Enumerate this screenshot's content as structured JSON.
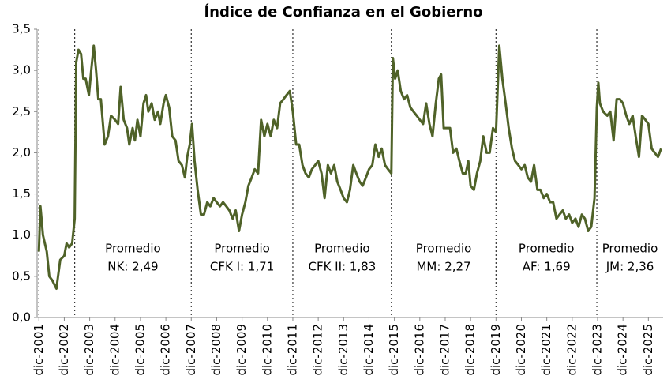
{
  "chart_data": {
    "type": "line",
    "title": "Índice de Confianza en el Gobierno",
    "color": "#4f6228",
    "grid": false,
    "xlim": [
      2001.85,
      2026.5
    ],
    "ylim": [
      0,
      3.5
    ],
    "yticks": [
      {
        "value": 0,
        "label": "0,0"
      },
      {
        "value": 0.5,
        "label": "0,5"
      },
      {
        "value": 1,
        "label": "1,0"
      },
      {
        "value": 1.5,
        "label": "1,5"
      },
      {
        "value": 2,
        "label": "2,0"
      },
      {
        "value": 2.5,
        "label": "2,5"
      },
      {
        "value": 3,
        "label": "3,0"
      },
      {
        "value": 3.5,
        "label": "3,5"
      }
    ],
    "xticks": [
      {
        "value": 2001.92,
        "label": "dic-2001"
      },
      {
        "value": 2002.92,
        "label": "dic-2002"
      },
      {
        "value": 2003.92,
        "label": "dic-2003"
      },
      {
        "value": 2004.92,
        "label": "dic-2004"
      },
      {
        "value": 2005.92,
        "label": "dic-2005"
      },
      {
        "value": 2006.92,
        "label": "dic-2006"
      },
      {
        "value": 2007.92,
        "label": "dic-2007"
      },
      {
        "value": 2008.92,
        "label": "dic-2008"
      },
      {
        "value": 2009.92,
        "label": "dic-2009"
      },
      {
        "value": 2010.92,
        "label": "dic-2010"
      },
      {
        "value": 2011.92,
        "label": "dic-2011"
      },
      {
        "value": 2012.92,
        "label": "dic-2012"
      },
      {
        "value": 2013.92,
        "label": "dic-2013"
      },
      {
        "value": 2014.92,
        "label": "dic-2014"
      },
      {
        "value": 2015.92,
        "label": "dic-2015"
      },
      {
        "value": 2016.92,
        "label": "dic-2016"
      },
      {
        "value": 2017.92,
        "label": "dic-2017"
      },
      {
        "value": 2018.92,
        "label": "dic-2018"
      },
      {
        "value": 2019.92,
        "label": "dic-2019"
      },
      {
        "value": 2020.92,
        "label": "dic-2020"
      },
      {
        "value": 2021.92,
        "label": "dic-2021"
      },
      {
        "value": 2022.92,
        "label": "dic-2022"
      },
      {
        "value": 2023.92,
        "label": "dic-2023"
      },
      {
        "value": 2024.92,
        "label": "dic-2024"
      },
      {
        "value": 2025.92,
        "label": "dic-2025"
      }
    ],
    "dividers": [
      2001.92,
      2003.33,
      2007.92,
      2011.92,
      2015.8,
      2019.92,
      2023.89
    ],
    "annotations": [
      {
        "text": "Promedio",
        "sub": "NK: 2,49"
      },
      {
        "text": "Promedio",
        "sub": "CFK I: 1,71"
      },
      {
        "text": "Promedio",
        "sub": "CFK II: 1,83"
      },
      {
        "text": "Promedio",
        "sub": "MM: 2,27"
      },
      {
        "text": "Promedio",
        "sub": "AF: 1,69"
      },
      {
        "text": "Promedio",
        "sub": "JM: 2,36"
      }
    ],
    "x": [
      2001.92,
      2001.98,
      2002.08,
      2002.23,
      2002.33,
      2002.45,
      2002.61,
      2002.76,
      2002.92,
      2003.01,
      2003.11,
      2003.23,
      2003.33,
      2003.39,
      2003.48,
      2003.58,
      2003.67,
      2003.76,
      2003.89,
      2003.98,
      2004.08,
      2004.17,
      2004.26,
      2004.36,
      2004.51,
      2004.64,
      2004.76,
      2004.92,
      2005.04,
      2005.14,
      2005.26,
      2005.39,
      2005.48,
      2005.61,
      2005.7,
      2005.8,
      2005.92,
      2006.04,
      2006.14,
      2006.23,
      2006.36,
      2006.48,
      2006.61,
      2006.7,
      2006.83,
      2006.92,
      2007.05,
      2007.17,
      2007.3,
      2007.42,
      2007.55,
      2007.67,
      2007.76,
      2007.86,
      2007.95,
      2008.05,
      2008.17,
      2008.3,
      2008.42,
      2008.55,
      2008.67,
      2008.8,
      2008.92,
      2009.05,
      2009.17,
      2009.3,
      2009.42,
      2009.55,
      2009.67,
      2009.8,
      2009.92,
      2010.05,
      2010.17,
      2010.3,
      2010.42,
      2010.55,
      2010.67,
      2010.8,
      2010.92,
      2011.05,
      2011.17,
      2011.3,
      2011.42,
      2011.55,
      2011.67,
      2011.8,
      2011.92,
      2012.05,
      2012.17,
      2012.3,
      2012.42,
      2012.55,
      2012.67,
      2012.8,
      2012.92,
      2013.05,
      2013.17,
      2013.3,
      2013.42,
      2013.55,
      2013.67,
      2013.8,
      2013.92,
      2014.05,
      2014.17,
      2014.3,
      2014.42,
      2014.55,
      2014.67,
      2014.8,
      2014.92,
      2015.05,
      2015.17,
      2015.3,
      2015.42,
      2015.55,
      2015.67,
      2015.8,
      2015.86,
      2015.95,
      2016.05,
      2016.17,
      2016.3,
      2016.42,
      2016.55,
      2016.67,
      2016.8,
      2016.92,
      2017.05,
      2017.17,
      2017.3,
      2017.42,
      2017.55,
      2017.67,
      2017.76,
      2017.86,
      2017.98,
      2018.11,
      2018.23,
      2018.36,
      2018.48,
      2018.61,
      2018.73,
      2018.83,
      2018.92,
      2019.05,
      2019.17,
      2019.3,
      2019.42,
      2019.55,
      2019.67,
      2019.8,
      2019.92,
      2020.05,
      2020.17,
      2020.3,
      2020.42,
      2020.55,
      2020.67,
      2020.8,
      2020.92,
      2021.05,
      2021.17,
      2021.3,
      2021.42,
      2021.55,
      2021.67,
      2021.8,
      2021.92,
      2022.05,
      2022.17,
      2022.3,
      2022.42,
      2022.55,
      2022.67,
      2022.8,
      2022.92,
      2023.05,
      2023.17,
      2023.3,
      2023.42,
      2023.55,
      2023.67,
      2023.8,
      2023.89,
      2023.95,
      2024.01,
      2024.14,
      2024.3,
      2024.42,
      2024.55,
      2024.67,
      2024.8,
      2024.92,
      2025.05,
      2025.17,
      2025.3,
      2025.42,
      2025.55,
      2025.67,
      2025.8,
      2025.92,
      2026.05,
      2026.17,
      2026.3,
      2026.42
    ],
    "values": [
      0.8,
      1.35,
      1.0,
      0.8,
      0.5,
      0.45,
      0.35,
      0.7,
      0.75,
      0.9,
      0.85,
      0.9,
      1.2,
      3.1,
      3.25,
      3.2,
      2.9,
      2.9,
      2.7,
      3.0,
      3.3,
      3.0,
      2.65,
      2.65,
      2.1,
      2.2,
      2.45,
      2.4,
      2.35,
      2.8,
      2.4,
      2.3,
      2.1,
      2.3,
      2.15,
      2.4,
      2.2,
      2.6,
      2.7,
      2.5,
      2.6,
      2.4,
      2.5,
      2.35,
      2.6,
      2.7,
      2.55,
      2.2,
      2.15,
      1.9,
      1.85,
      1.7,
      1.95,
      2.1,
      2.35,
      1.9,
      1.55,
      1.25,
      1.25,
      1.4,
      1.35,
      1.45,
      1.4,
      1.35,
      1.4,
      1.35,
      1.3,
      1.2,
      1.3,
      1.05,
      1.25,
      1.4,
      1.6,
      1.7,
      1.8,
      1.75,
      2.4,
      2.2,
      2.35,
      2.2,
      2.4,
      2.3,
      2.6,
      2.65,
      2.7,
      2.75,
      2.5,
      2.1,
      2.1,
      1.85,
      1.75,
      1.7,
      1.8,
      1.85,
      1.9,
      1.75,
      1.45,
      1.85,
      1.75,
      1.85,
      1.65,
      1.55,
      1.45,
      1.4,
      1.55,
      1.85,
      1.75,
      1.65,
      1.6,
      1.7,
      1.8,
      1.85,
      2.1,
      1.95,
      2.05,
      1.85,
      1.8,
      1.75,
      3.15,
      2.9,
      3.0,
      2.75,
      2.65,
      2.7,
      2.55,
      2.5,
      2.45,
      2.4,
      2.35,
      2.6,
      2.35,
      2.2,
      2.6,
      2.9,
      2.95,
      2.3,
      2.3,
      2.3,
      2.0,
      2.05,
      1.9,
      1.75,
      1.75,
      1.9,
      1.6,
      1.55,
      1.75,
      1.9,
      2.2,
      2.0,
      2.0,
      2.3,
      2.25,
      3.3,
      2.9,
      2.6,
      2.3,
      2.05,
      1.9,
      1.85,
      1.8,
      1.85,
      1.7,
      1.65,
      1.85,
      1.55,
      1.55,
      1.45,
      1.5,
      1.4,
      1.4,
      1.2,
      1.25,
      1.3,
      1.2,
      1.25,
      1.15,
      1.2,
      1.1,
      1.25,
      1.2,
      1.05,
      1.1,
      1.45,
      2.55,
      2.85,
      2.6,
      2.5,
      2.45,
      2.5,
      2.15,
      2.65,
      2.65,
      2.6,
      2.45,
      2.35,
      2.45,
      2.2,
      1.95,
      2.45,
      2.4,
      2.35,
      2.05,
      2.0,
      1.95,
      2.05
    ]
  }
}
